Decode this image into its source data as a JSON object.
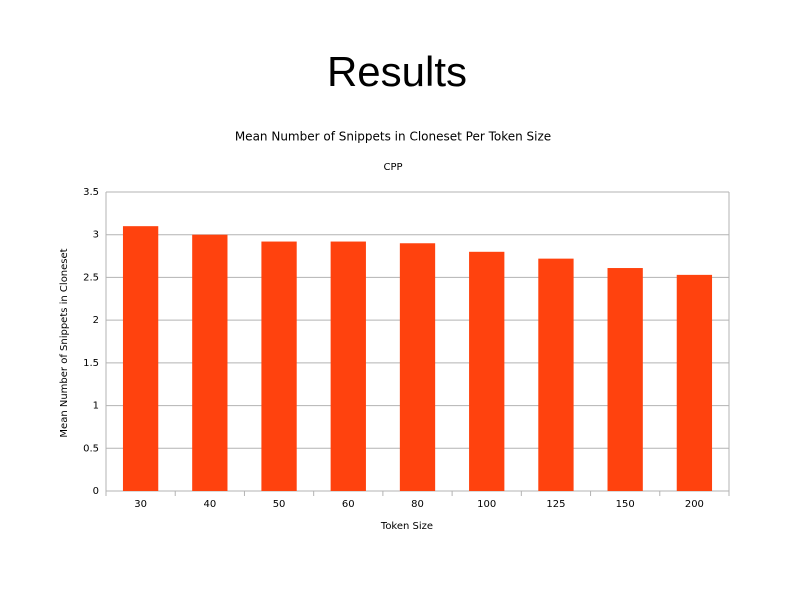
{
  "title": "Results",
  "chart_data": {
    "type": "bar",
    "title": "Mean Number of Snippets in Cloneset Per Token Size",
    "subtitle": "CPP",
    "x_label": "Token Size",
    "y_label": "Mean Number of Snippets in Cloneset",
    "categories": [
      "30",
      "40",
      "50",
      "60",
      "80",
      "100",
      "125",
      "150",
      "200"
    ],
    "values": [
      3.1,
      3.0,
      2.92,
      2.92,
      2.9,
      2.8,
      2.72,
      2.61,
      2.53
    ],
    "color": "#ff420e",
    "ylim": [
      0,
      3.5
    ],
    "yticks": [
      0,
      0.5,
      1,
      1.5,
      2,
      2.5,
      3,
      3.5
    ],
    "grid": true
  }
}
